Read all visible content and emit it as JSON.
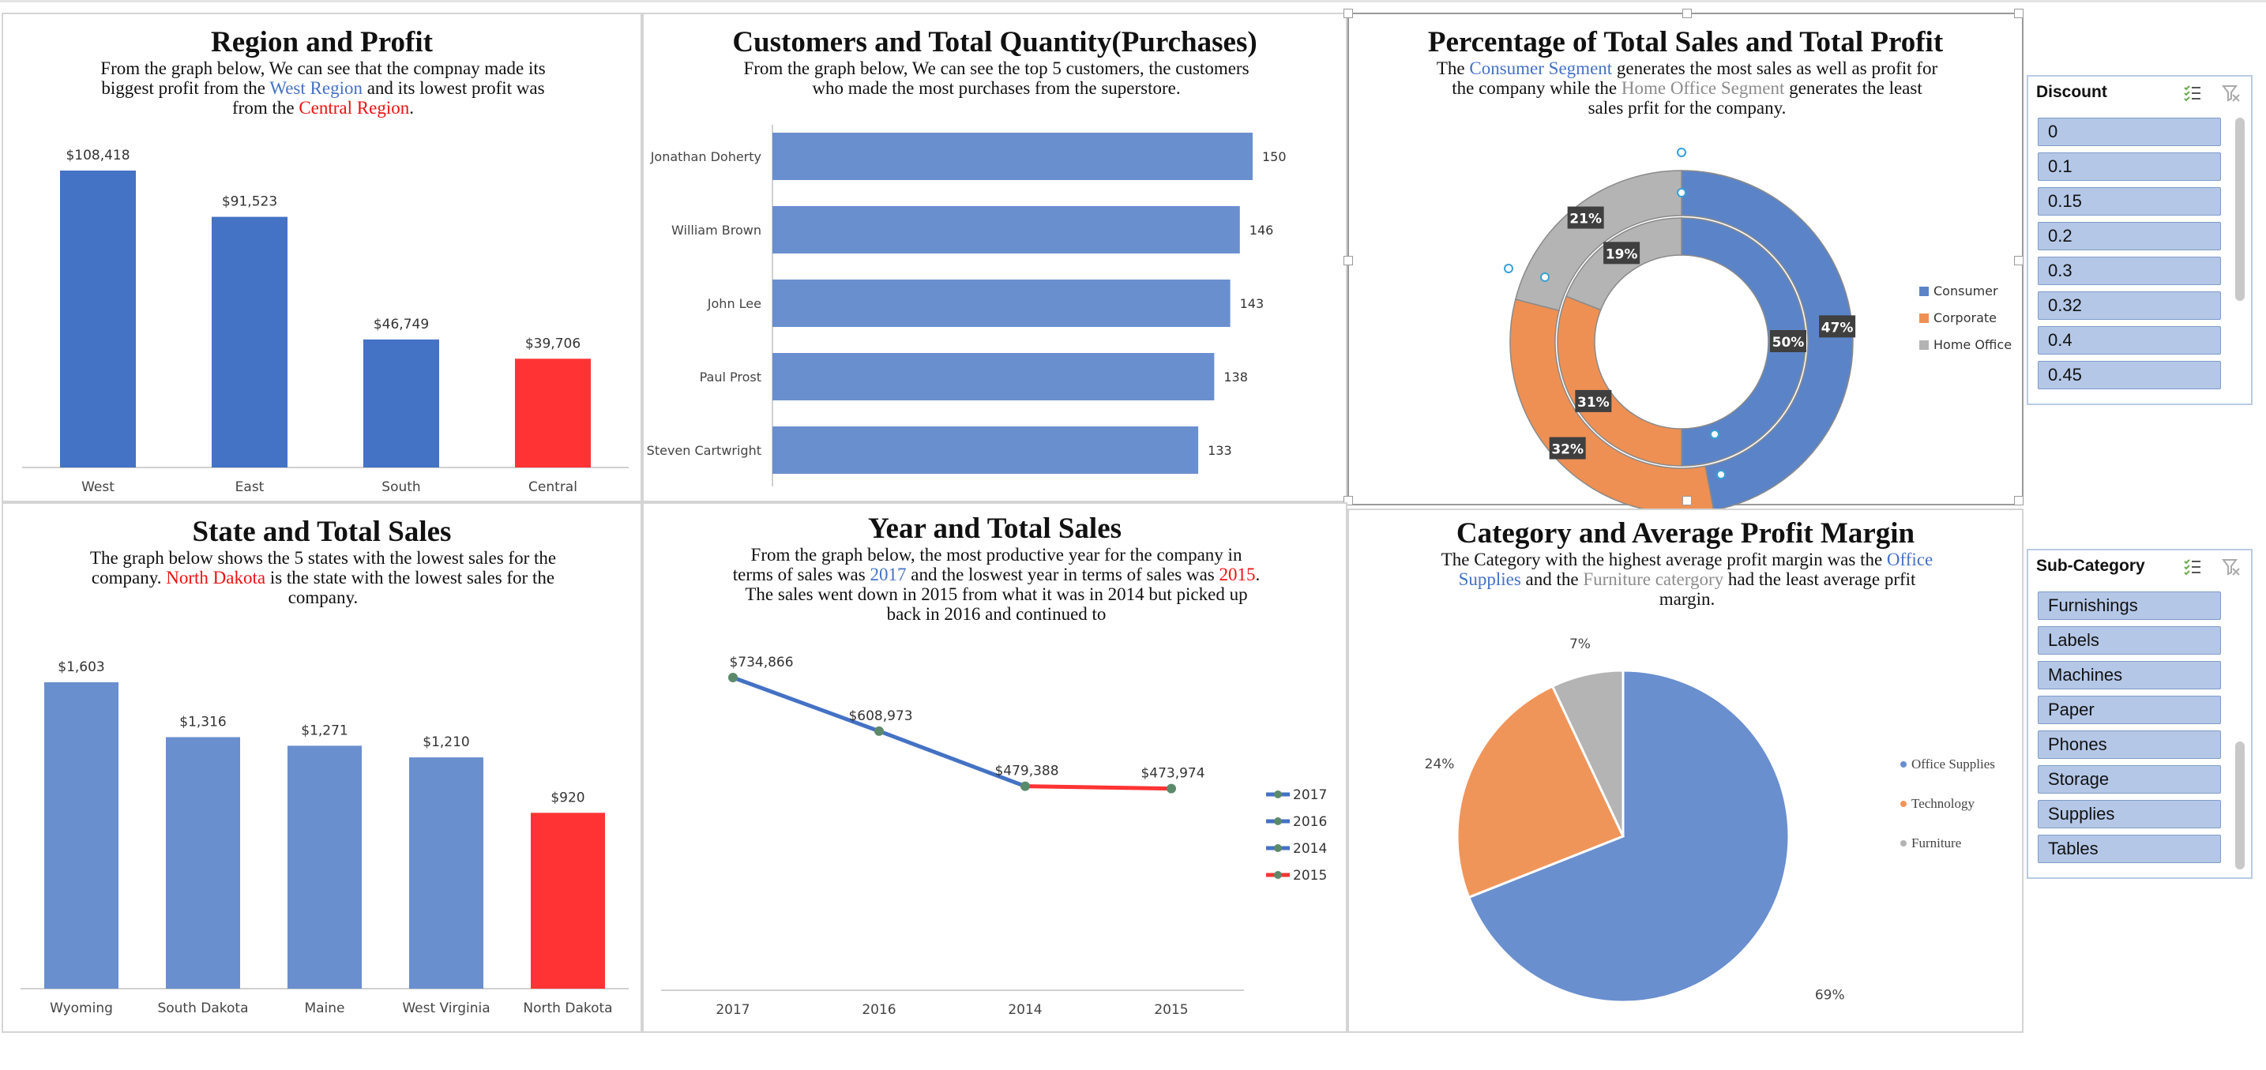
{
  "colors": {
    "blue": "#4472c4",
    "light_blue": "#6a8fcf",
    "red": "#ff3333",
    "orange": "#f0955a",
    "grey": "#b4b4b4",
    "slicer_item": "#b4c7e7"
  },
  "panels": {
    "region": {
      "title": "Region and Profit",
      "desc": [
        [
          {
            "t": "From the graph below, We can see that the compnay made its"
          }
        ],
        [
          {
            "t": "biggest profit from the "
          },
          {
            "t": "West Region",
            "c": "blue"
          },
          {
            "t": " and its lowest profit was"
          }
        ],
        [
          {
            "t": "from the "
          },
          {
            "t": "Central Region",
            "c": "red"
          },
          {
            "t": "."
          }
        ]
      ]
    },
    "customers": {
      "title": "Customers and Total Quantity(Purchases)",
      "desc": [
        [
          {
            "t": "From the graph below, We can see the top 5 customers, the customers"
          }
        ],
        [
          {
            "t": "who made the most purchases from the superstore."
          }
        ]
      ]
    },
    "segment": {
      "title": "Percentage of Total Sales and Total Profit",
      "desc": [
        [
          {
            "t": "The "
          },
          {
            "t": "Consumer Segment",
            "c": "blue"
          },
          {
            "t": " generates the most sales as well as profit  for"
          }
        ],
        [
          {
            "t": "the company while the "
          },
          {
            "t": "Home Office Segment",
            "c": "grey"
          },
          {
            "t": " generates the least"
          }
        ],
        [
          {
            "t": "sales prfit for the company."
          }
        ]
      ]
    },
    "state": {
      "title": "State and Total Sales",
      "desc": [
        [
          {
            "t": "The graph below shows the 5 states with the lowest sales for the"
          }
        ],
        [
          {
            "t": "company. "
          },
          {
            "t": "North Dakota",
            "c": "red"
          },
          {
            "t": " is the state with the lowest sales for the"
          }
        ],
        [
          {
            "t": "company."
          }
        ]
      ]
    },
    "year": {
      "title": "Year and Total Sales",
      "desc": [
        [
          {
            "t": "From the graph below, the most productive year for the company in"
          }
        ],
        [
          {
            "t": "terms of sales was "
          },
          {
            "t": "2017",
            "c": "blue"
          },
          {
            "t": " and the loswest year in terms of sales was "
          },
          {
            "t": "2015",
            "c": "red"
          },
          {
            "t": "."
          }
        ],
        [
          {
            "t": "The sales went down in 2015 from what it was in 2014 but picked up"
          }
        ],
        [
          {
            "t": "back in 2016 and continued to"
          }
        ]
      ]
    },
    "category": {
      "title": "Category and Average Profit Margin",
      "desc": [
        [
          {
            "t": "The Category with the highest average profit margin was the "
          },
          {
            "t": "Office",
            "c": "blue"
          }
        ],
        [
          {
            "t": "Supplies",
            "c": "blue"
          },
          {
            "t": " and the "
          },
          {
            "t": "Furniture catergory",
            "c": "grey"
          },
          {
            "t": " had the least average prfit"
          }
        ],
        [
          {
            "t": "margin."
          }
        ]
      ]
    }
  },
  "chart_data": [
    {
      "id": "region",
      "type": "bar",
      "categories": [
        "West",
        "East",
        "South",
        "Central"
      ],
      "values": [
        108418,
        91523,
        46749,
        39706
      ],
      "labels": [
        "$108,418",
        "$91,523",
        "$46,749",
        "$39,706"
      ],
      "bar_colors": [
        "#4472c4",
        "#4472c4",
        "#4472c4",
        "#ff3333"
      ],
      "ylim": [
        0,
        108418
      ]
    },
    {
      "id": "customers",
      "type": "bar",
      "orientation": "horizontal",
      "categories": [
        "Jonathan Doherty",
        "William Brown",
        "John Lee",
        "Paul Prost",
        "Steven Cartwright"
      ],
      "values": [
        150,
        146,
        143,
        138,
        133
      ],
      "labels": [
        "150",
        "146",
        "143",
        "138",
        "133"
      ],
      "bar_colors": [
        "#6a8fcf",
        "#6a8fcf",
        "#6a8fcf",
        "#6a8fcf",
        "#6a8fcf"
      ],
      "xlim": [
        0,
        150
      ]
    },
    {
      "id": "segment",
      "type": "pie",
      "style": "double-donut",
      "legend": [
        "Consumer",
        "Corporate",
        "Home Office"
      ],
      "colors": [
        "#5b84c8",
        "#ee9054",
        "#b4b4b4"
      ],
      "series": [
        {
          "ring": "outer",
          "values": [
            47,
            32,
            21
          ],
          "labels": [
            "47%",
            "32%",
            "21%"
          ]
        },
        {
          "ring": "inner",
          "values": [
            50,
            31,
            19
          ],
          "labels": [
            "50%",
            "31%",
            "19%"
          ]
        }
      ],
      "legend_position": "right"
    },
    {
      "id": "state",
      "type": "bar",
      "categories": [
        "Wyoming",
        "South Dakota",
        "Maine",
        "West Virginia",
        "North Dakota"
      ],
      "values": [
        1603,
        1316,
        1271,
        1210,
        920
      ],
      "labels": [
        "$1,603",
        "$1,316",
        "$1,271",
        "$1,210",
        "$920"
      ],
      "bar_colors": [
        "#6a8fcf",
        "#6a8fcf",
        "#6a8fcf",
        "#6a8fcf",
        "#ff3333"
      ],
      "ylim": [
        0,
        1603
      ]
    },
    {
      "id": "year",
      "type": "line",
      "categories": [
        "2017",
        "2016",
        "2014",
        "2015"
      ],
      "values": [
        734866,
        608973,
        479388,
        473974
      ],
      "labels": [
        "$734,866",
        "$608,973",
        "$479,388",
        "$473,974"
      ],
      "legend": [
        {
          "name": "2017",
          "color": "#4472c4"
        },
        {
          "name": "2016",
          "color": "#4472c4"
        },
        {
          "name": "2014",
          "color": "#4472c4"
        },
        {
          "name": "2015",
          "color": "#ff3333"
        }
      ],
      "ylim": [
        0,
        734866
      ],
      "legend_position": "right"
    },
    {
      "id": "category",
      "type": "pie",
      "categories": [
        "Office Supplies",
        "Technology",
        "Furniture"
      ],
      "values": [
        69,
        24,
        7
      ],
      "labels": [
        "69%",
        "24%",
        "7%"
      ],
      "colors": [
        "#6a8fcf",
        "#f0955a",
        "#b4b4b4"
      ],
      "legend_position": "right"
    }
  ],
  "slicers": {
    "discount": {
      "title": "Discount",
      "items": [
        "0",
        "0.1",
        "0.15",
        "0.2",
        "0.3",
        "0.32",
        "0.4",
        "0.45"
      ]
    },
    "subcategory": {
      "title": "Sub-Category",
      "items": [
        "Furnishings",
        "Labels",
        "Machines",
        "Paper",
        "Phones",
        "Storage",
        "Supplies",
        "Tables"
      ]
    }
  }
}
